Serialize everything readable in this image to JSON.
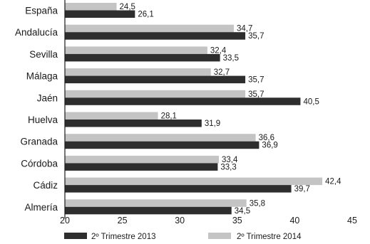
{
  "chart_data": {
    "type": "bar",
    "orientation": "horizontal",
    "categories": [
      "España",
      "Andalucía",
      "Sevilla",
      "Málaga",
      "Jaén",
      "Huelva",
      "Granada",
      "Córdoba",
      "Cádiz",
      "Almería"
    ],
    "series": [
      {
        "name": "2º Trimestre 2014",
        "color": "#c4c4c4",
        "values": [
          24.5,
          34.7,
          32.4,
          32.7,
          35.7,
          28.1,
          36.6,
          33.4,
          42.4,
          35.8
        ],
        "labels": [
          "24,5",
          "34,7",
          "32,4",
          "32,7",
          "35,7",
          "28,1",
          "36,6",
          "33,4",
          "42,4",
          "35,8"
        ]
      },
      {
        "name": "2º Trimestre 2013",
        "color": "#2e2e2e",
        "values": [
          26.1,
          35.7,
          33.5,
          35.7,
          40.5,
          31.9,
          36.9,
          33.3,
          39.7,
          34.5
        ],
        "labels": [
          "26,1",
          "35,7",
          "33,5",
          "35,7",
          "40,5",
          "31,9",
          "36,9",
          "33,3",
          "39,7",
          "34,5"
        ]
      }
    ],
    "x_ticks": [
      "20",
      "25",
      "30",
      "35",
      "40",
      "45"
    ],
    "xlim": [
      20,
      45
    ],
    "legend_order": [
      "2º Trimestre 2013",
      "2º Trimestre 2014"
    ],
    "legend_position": "bottom",
    "grid": false
  }
}
